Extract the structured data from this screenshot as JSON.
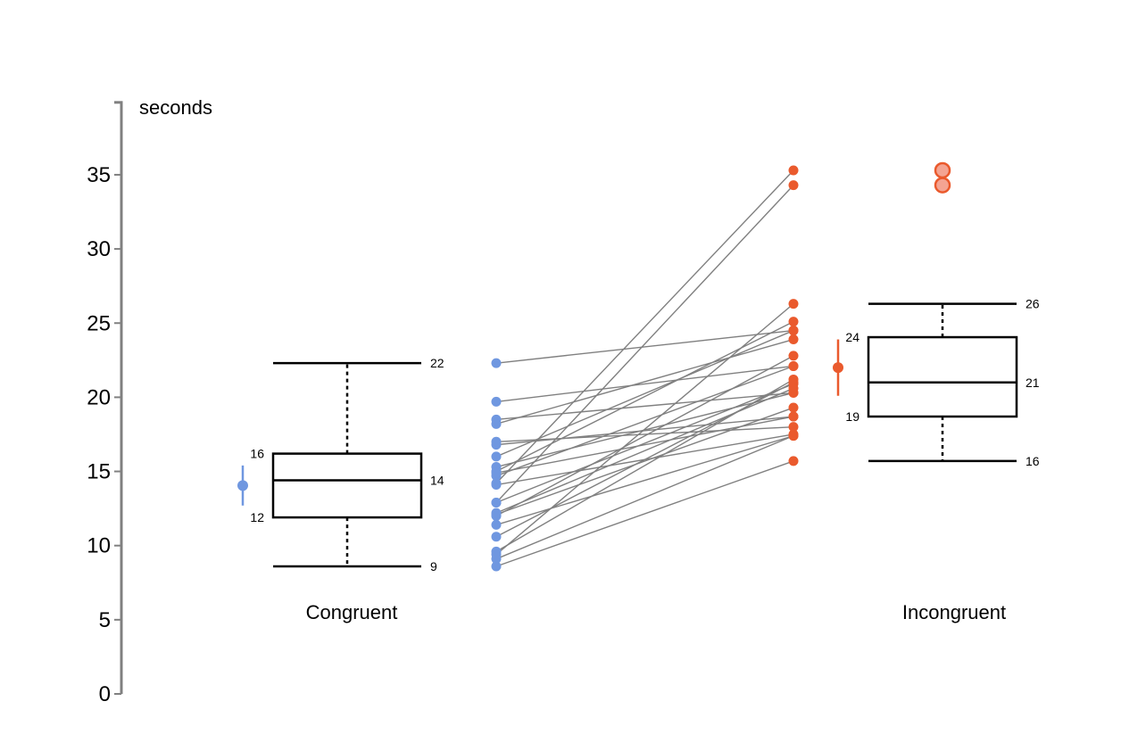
{
  "chart_data": {
    "type": "scatter",
    "ylabel": "seconds",
    "ylim": [
      0,
      40
    ],
    "y_ticks": [
      0,
      5,
      10,
      15,
      20,
      25,
      30,
      35
    ],
    "grid": false,
    "legend": "none",
    "colors": {
      "congruent": "#6f97e0",
      "incongruent": "#ea5a2d",
      "outlier_fill": "#f4a492",
      "lines": "#808080",
      "axis": "#808080",
      "box": "#000000"
    },
    "groups": [
      {
        "name": "Congruent",
        "box": {
          "whisker_low": 8.6,
          "q1": 11.9,
          "median": 14.4,
          "q3": 16.2,
          "whisker_high": 22.3,
          "labels": {
            "whisker_low": "9",
            "q1": "12",
            "median": "14",
            "q3": "16",
            "whisker_high": "22"
          }
        },
        "mean": 14.05,
        "ci": [
          12.7,
          15.4
        ],
        "outliers": []
      },
      {
        "name": "Incongruent",
        "box": {
          "whisker_low": 15.7,
          "q1": 18.7,
          "median": 21.0,
          "q3": 24.05,
          "whisker_high": 26.3,
          "labels": {
            "whisker_low": "16",
            "q1": "19",
            "median": "21",
            "q3": "24",
            "whisker_high": "26"
          }
        },
        "mean": 22.0,
        "ci": [
          20.1,
          23.9
        ],
        "outliers": [
          35.3,
          34.3
        ]
      }
    ],
    "pairs": [
      [
        12.1,
        19.3
      ],
      [
        16.8,
        18.7
      ],
      [
        9.6,
        21.2
      ],
      [
        8.6,
        15.7
      ],
      [
        14.7,
        22.1
      ],
      [
        12.9,
        20.9
      ],
      [
        12.9,
        34.3
      ],
      [
        12.0,
        22.8
      ],
      [
        15.3,
        20.3
      ],
      [
        16.0,
        24.5
      ],
      [
        15.0,
        25.1
      ],
      [
        14.1,
        17.5
      ],
      [
        14.2,
        35.3
      ],
      [
        10.6,
        21.0
      ],
      [
        18.5,
        20.3
      ],
      [
        17.0,
        18.0
      ],
      [
        19.7,
        22.1
      ],
      [
        22.3,
        24.5
      ],
      [
        14.9,
        18.7
      ],
      [
        12.2,
        20.6
      ],
      [
        9.1,
        17.4
      ],
      [
        11.4,
        17.4
      ],
      [
        18.2,
        23.9
      ],
      [
        9.4,
        26.3
      ]
    ]
  }
}
